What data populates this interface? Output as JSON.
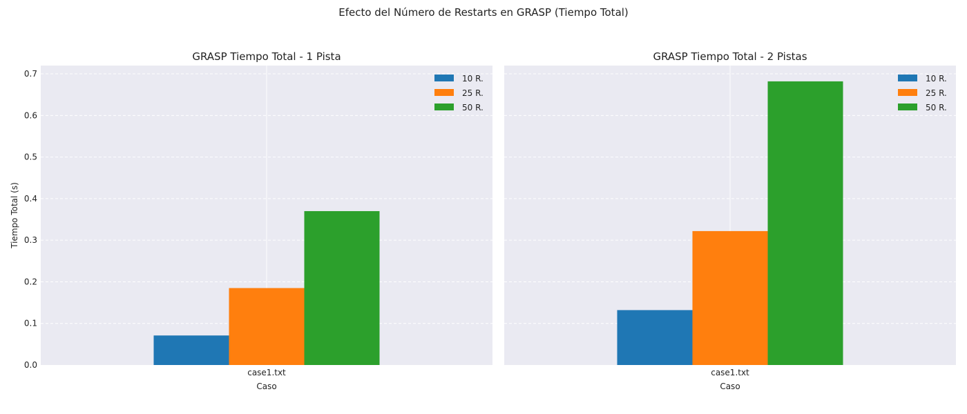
{
  "figure": {
    "suptitle": "Efecto del Número de Restarts en GRASP (Tiempo Total)",
    "background": "#ffffff",
    "axes_background": "#eaeaf2",
    "grid_color": "#ffffff"
  },
  "chart_data": [
    {
      "type": "bar",
      "title": "GRASP Tiempo Total - 1 Pista",
      "xlabel": "Caso",
      "ylabel": "Tiempo Total (s)",
      "categories": [
        "case1.txt"
      ],
      "ylim": [
        0,
        0.72
      ],
      "yticks": [
        0.0,
        0.1,
        0.2,
        0.3,
        0.4,
        0.5,
        0.6,
        0.7
      ],
      "ytick_labels": [
        "0.0",
        "0.1",
        "0.2",
        "0.3",
        "0.4",
        "0.5",
        "0.6",
        "0.7"
      ],
      "grid": true,
      "legend": "upper right",
      "series": [
        {
          "name": "10 R.",
          "color": "#1f77b4",
          "values": [
            0.071
          ]
        },
        {
          "name": "25 R.",
          "color": "#ff7f0e",
          "values": [
            0.185
          ]
        },
        {
          "name": "50 R.",
          "color": "#2ca02c",
          "values": [
            0.37
          ]
        }
      ]
    },
    {
      "type": "bar",
      "title": "GRASP Tiempo Total - 2 Pistas",
      "xlabel": "Caso",
      "ylabel": "",
      "categories": [
        "case1.txt"
      ],
      "ylim": [
        0,
        0.72
      ],
      "yticks": [
        0.0,
        0.1,
        0.2,
        0.3,
        0.4,
        0.5,
        0.6,
        0.7
      ],
      "ytick_labels": [],
      "grid": true,
      "legend": "upper right",
      "series": [
        {
          "name": "10 R.",
          "color": "#1f77b4",
          "values": [
            0.132
          ]
        },
        {
          "name": "25 R.",
          "color": "#ff7f0e",
          "values": [
            0.322
          ]
        },
        {
          "name": "50 R.",
          "color": "#2ca02c",
          "values": [
            0.682
          ]
        }
      ]
    }
  ]
}
